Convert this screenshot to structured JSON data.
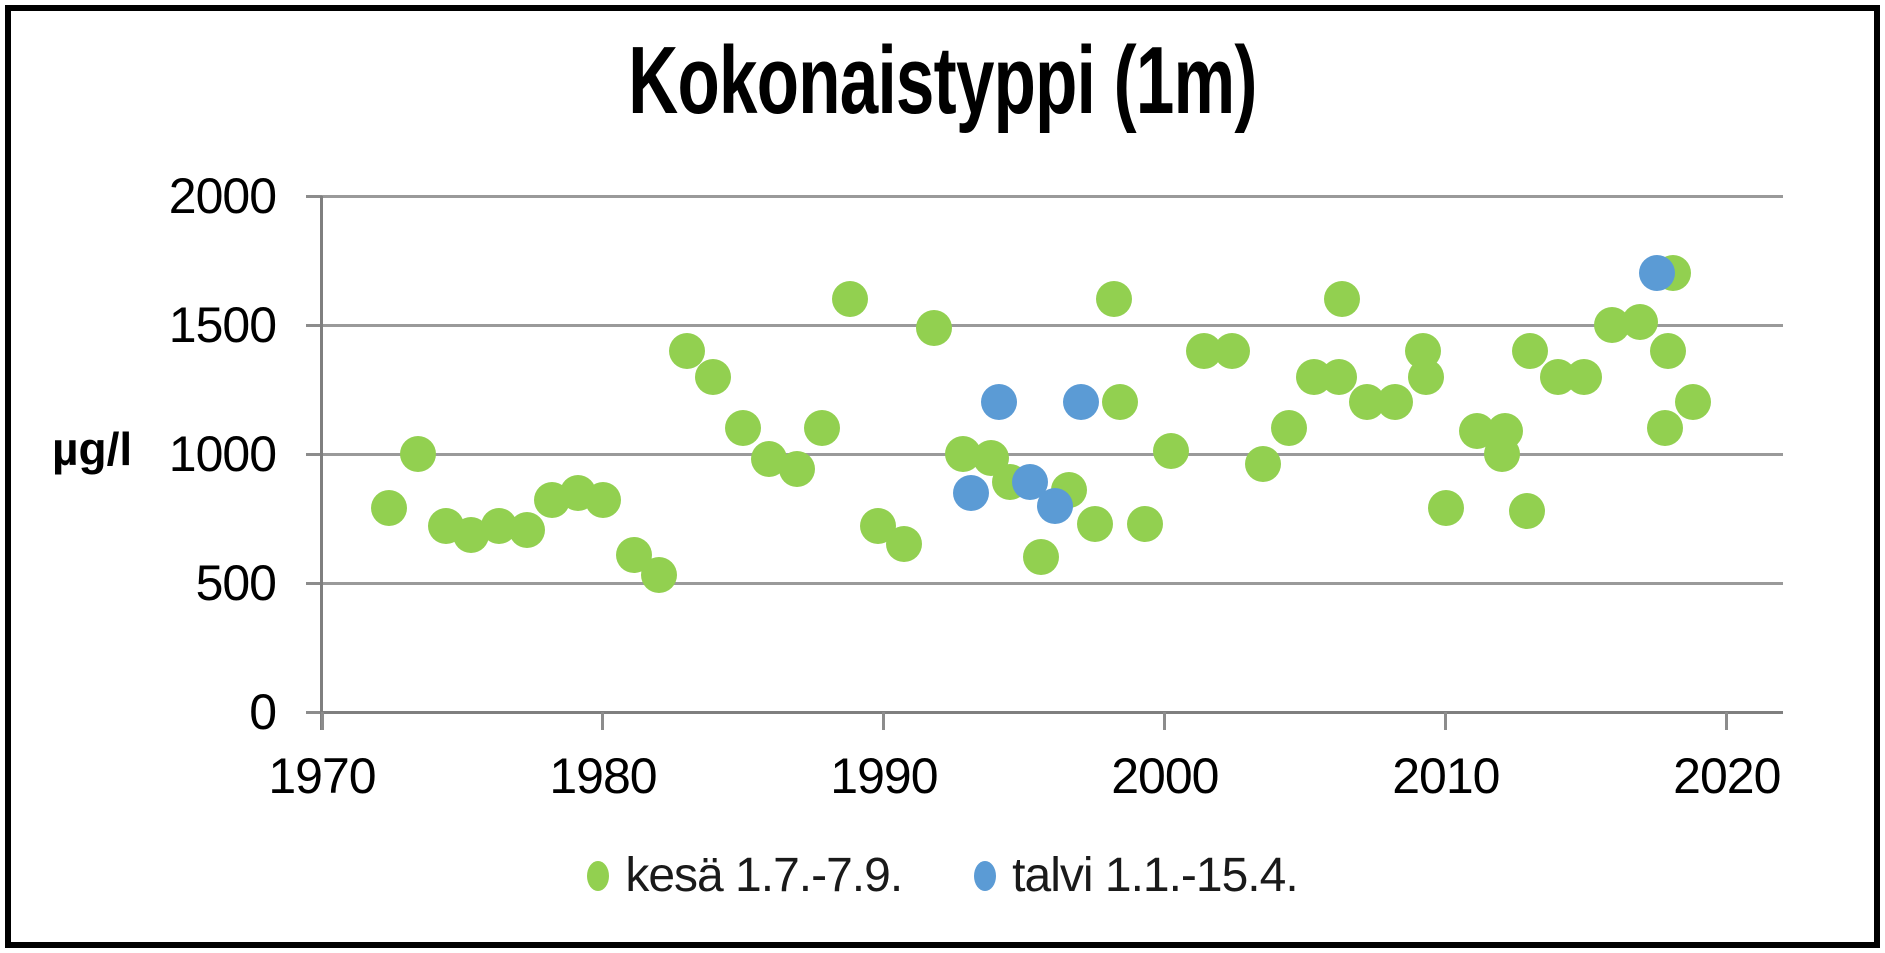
{
  "chart_data": {
    "type": "scatter",
    "title": "Kokonaistyppi (1m)",
    "ylabel": "µg/l",
    "xlabel": "",
    "xlim": [
      1970,
      2022
    ],
    "ylim": [
      0,
      2000
    ],
    "x_ticks": [
      1970,
      1980,
      1990,
      2000,
      2010,
      2020
    ],
    "y_ticks": [
      0,
      500,
      1000,
      1500,
      2000
    ],
    "grid": "horizontal",
    "legend_position": "bottom",
    "series": [
      {
        "name": "kesä 1.7.-7.9.",
        "color": "#92D050",
        "points": [
          [
            1972.4,
            790
          ],
          [
            1973.4,
            1000
          ],
          [
            1974.4,
            720
          ],
          [
            1975.3,
            685
          ],
          [
            1976.3,
            720
          ],
          [
            1977.3,
            705
          ],
          [
            1978.2,
            820
          ],
          [
            1979.1,
            850
          ],
          [
            1980.0,
            820
          ],
          [
            1981.1,
            610
          ],
          [
            1982.0,
            530
          ],
          [
            1983.0,
            1400
          ],
          [
            1983.9,
            1300
          ],
          [
            1985.0,
            1100
          ],
          [
            1985.9,
            980
          ],
          [
            1986.9,
            940
          ],
          [
            1987.8,
            1100
          ],
          [
            1988.8,
            1600
          ],
          [
            1989.8,
            720
          ],
          [
            1990.7,
            650
          ],
          [
            1991.8,
            1490
          ],
          [
            1992.8,
            1000
          ],
          [
            1993.8,
            985
          ],
          [
            1994.5,
            890
          ],
          [
            1995.6,
            600
          ],
          [
            1996.6,
            860
          ],
          [
            1997.5,
            730
          ],
          [
            1998.2,
            1600
          ],
          [
            1998.4,
            1200
          ],
          [
            1999.3,
            730
          ],
          [
            2000.2,
            1010
          ],
          [
            2001.4,
            1400
          ],
          [
            2002.4,
            1400
          ],
          [
            2003.5,
            960
          ],
          [
            2004.4,
            1100
          ],
          [
            2005.3,
            1300
          ],
          [
            2006.2,
            1300
          ],
          [
            2006.3,
            1600
          ],
          [
            2007.2,
            1200
          ],
          [
            2008.2,
            1200
          ],
          [
            2009.2,
            1400
          ],
          [
            2009.3,
            1300
          ],
          [
            2010.0,
            790
          ],
          [
            2011.1,
            1090
          ],
          [
            2012.1,
            1090
          ],
          [
            2012.0,
            1000
          ],
          [
            2012.9,
            780
          ],
          [
            2013.0,
            1400
          ],
          [
            2014.0,
            1300
          ],
          [
            2014.9,
            1300
          ],
          [
            2015.9,
            1500
          ],
          [
            2016.9,
            1510
          ],
          [
            2017.8,
            1100
          ],
          [
            2017.9,
            1400
          ],
          [
            2018.1,
            1700
          ],
          [
            2018.8,
            1200
          ]
        ]
      },
      {
        "name": "talvi 1.1.-15.4.",
        "color": "#5B9BD5",
        "points": [
          [
            1993.1,
            850
          ],
          [
            1994.1,
            1200
          ],
          [
            1995.2,
            890
          ],
          [
            1996.1,
            800
          ],
          [
            1997.0,
            1200
          ],
          [
            2017.5,
            1700
          ]
        ]
      }
    ]
  },
  "colors": {
    "grid": "#9A9A9A",
    "axis": "#7F7F7F",
    "text": "#000000",
    "border": "#000000",
    "kesa": "#92D050",
    "talvi": "#5B9BD5"
  }
}
